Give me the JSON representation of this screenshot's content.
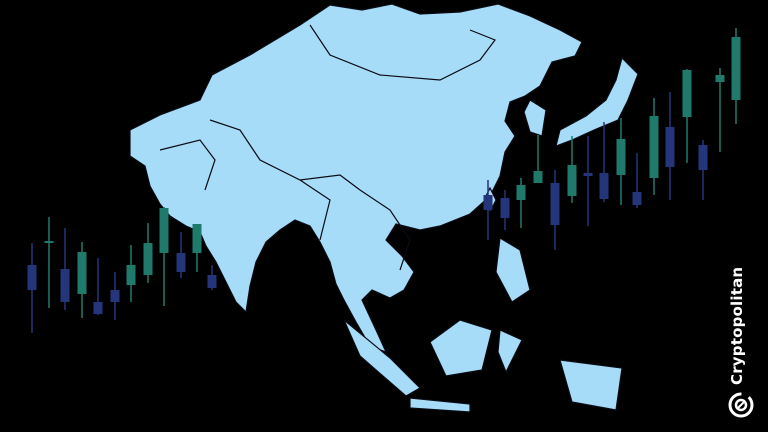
{
  "brand": {
    "name": "Cryptopolitan",
    "icon": "cryptopolitan-logo-icon"
  },
  "colors": {
    "background": "#000000",
    "land": "#a6dcf7",
    "border": "#1a1a2e",
    "candle_bull": "#1f7a6c",
    "candle_bear": "#25357a"
  }
}
